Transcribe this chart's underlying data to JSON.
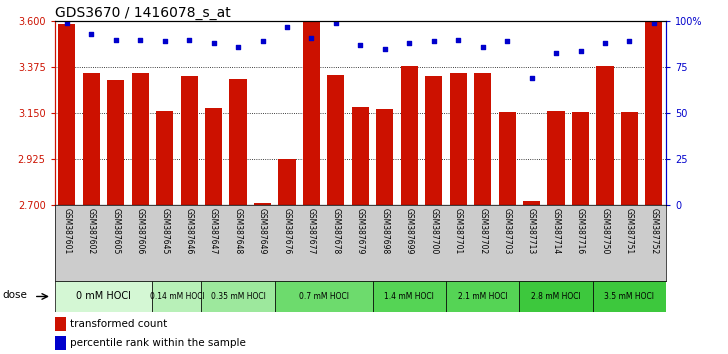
{
  "title": "GDS3670 / 1416078_s_at",
  "samples": [
    "GSM387601",
    "GSM387602",
    "GSM387605",
    "GSM387606",
    "GSM387645",
    "GSM387646",
    "GSM387647",
    "GSM387648",
    "GSM387649",
    "GSM387676",
    "GSM387677",
    "GSM387678",
    "GSM387679",
    "GSM387698",
    "GSM387699",
    "GSM387700",
    "GSM387701",
    "GSM387702",
    "GSM387703",
    "GSM387713",
    "GSM387714",
    "GSM387716",
    "GSM387750",
    "GSM387751",
    "GSM387752"
  ],
  "bar_values": [
    3.585,
    3.347,
    3.315,
    3.347,
    3.16,
    3.33,
    3.175,
    3.32,
    2.71,
    2.925,
    3.595,
    3.335,
    3.18,
    3.17,
    3.38,
    3.33,
    3.345,
    3.345,
    3.155,
    2.72,
    3.16,
    3.155,
    3.38,
    3.155,
    3.595
  ],
  "percentile_values": [
    99,
    93,
    90,
    90,
    89,
    90,
    88,
    86,
    89,
    97,
    91,
    99,
    87,
    85,
    88,
    89,
    90,
    86,
    89,
    69,
    83,
    84,
    88,
    89,
    99
  ],
  "dose_groups": [
    {
      "label": "0 mM HOCl",
      "start": 0,
      "end": 4,
      "color": "#d4f7d4"
    },
    {
      "label": "0.14 mM HOCl",
      "start": 4,
      "end": 6,
      "color": "#b8f0b8"
    },
    {
      "label": "0.35 mM HOCl",
      "start": 6,
      "end": 9,
      "color": "#9de89d"
    },
    {
      "label": "0.7 mM HOCl",
      "start": 9,
      "end": 13,
      "color": "#6ddb6d"
    },
    {
      "label": "1.4 mM HOCl",
      "start": 13,
      "end": 16,
      "color": "#55d455"
    },
    {
      "label": "2.1 mM HOCl",
      "start": 16,
      "end": 19,
      "color": "#55d455"
    },
    {
      "label": "2.8 mM HOCl",
      "start": 19,
      "end": 22,
      "color": "#3dc83d"
    },
    {
      "label": "3.5 mM HOCl",
      "start": 22,
      "end": 25,
      "color": "#3dc83d"
    }
  ],
  "ymin": 2.7,
  "ymax": 3.6,
  "yticks": [
    2.7,
    2.925,
    3.15,
    3.375,
    3.6
  ],
  "right_yticks": [
    0,
    25,
    50,
    75,
    100
  ],
  "bar_color": "#cc1100",
  "dot_color": "#0000cc",
  "bg_color": "#ffffff",
  "grid_color": "#000000",
  "title_fontsize": 10,
  "tick_fontsize": 7,
  "sample_fontsize": 5.5,
  "dose_fontsize": 7,
  "legend_fontsize": 7.5,
  "right_axis_color": "#0000cc",
  "left_axis_color": "#cc1100",
  "sample_bg_color": "#cccccc"
}
